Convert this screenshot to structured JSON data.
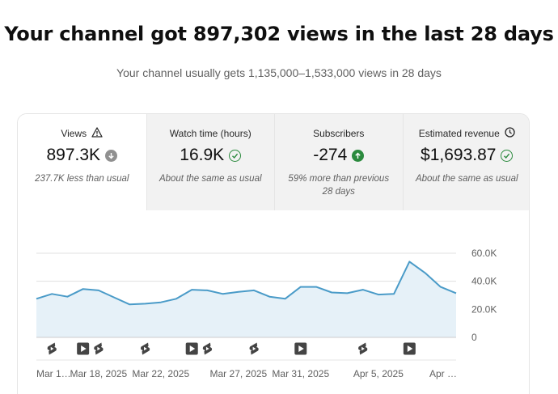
{
  "header": {
    "title": "Your channel got 897,302 views in the last 28 days",
    "subtitle": "Your channel usually gets 1,135,000–1,533,000 views in 28 days"
  },
  "metrics": [
    {
      "label": "Views",
      "value": "897.3K",
      "note": "237.7K less than usual",
      "label_icon": "warning-icon",
      "value_icon": "arrow-down-icon"
    },
    {
      "label": "Watch time (hours)",
      "value": "16.9K",
      "note": "About the same as usual",
      "label_icon": "",
      "value_icon": "check-circle-icon"
    },
    {
      "label": "Subscribers",
      "value": "-274",
      "note": "59% more than previous 28 days",
      "label_icon": "",
      "value_icon": "arrow-up-icon"
    },
    {
      "label": "Estimated revenue",
      "value": "$1,693.87",
      "note": "About the same as usual",
      "label_icon": "clock-icon",
      "value_icon": "check-circle-icon"
    }
  ],
  "colors": {
    "line": "#4a9bc8",
    "area": "#e6f1f8",
    "grid": "#e0e0e0",
    "icon": "#444444"
  },
  "chart_data": {
    "type": "area",
    "y_ticks": [
      "60.0K",
      "40.0K",
      "20.0K",
      "0"
    ],
    "ylim": [
      0,
      60000
    ],
    "x_tick_labels": [
      "Mar 1…",
      "Mar 18, 2025",
      "Mar 22, 2025",
      "Mar 27, 2025",
      "Mar 31, 2025",
      "Apr 5, 2025",
      "Apr …"
    ],
    "x_tick_day_index": [
      0,
      4,
      8,
      13,
      17,
      22,
      26
    ],
    "values": [
      27500,
      31000,
      29000,
      34500,
      33500,
      28500,
      23500,
      24000,
      25000,
      27500,
      34000,
      33500,
      31000,
      32500,
      33500,
      29000,
      27500,
      36000,
      36000,
      32000,
      31500,
      34000,
      30500,
      31000,
      54000,
      46000,
      36000,
      31500
    ],
    "grid": true,
    "video_markers": [
      {
        "day": 1,
        "kind": "shorts-icon"
      },
      {
        "day": 3,
        "kind": "video-icon"
      },
      {
        "day": 4,
        "kind": "shorts-icon"
      },
      {
        "day": 7,
        "kind": "shorts-icon"
      },
      {
        "day": 10,
        "kind": "video-icon"
      },
      {
        "day": 11,
        "kind": "shorts-icon"
      },
      {
        "day": 14,
        "kind": "shorts-icon"
      },
      {
        "day": 17,
        "kind": "video-icon"
      },
      {
        "day": 21,
        "kind": "shorts-icon"
      },
      {
        "day": 24,
        "kind": "video-icon"
      }
    ]
  }
}
